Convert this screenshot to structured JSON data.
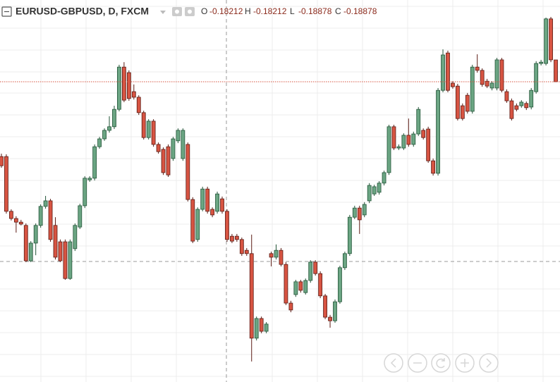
{
  "chart_data": {
    "type": "candlestick",
    "title": "EURUSD-GBPUSD, D, FXCM",
    "ohlc_labels": [
      "O",
      "H",
      "L",
      "C"
    ],
    "up_color": "#6ba583",
    "up_border": "#225437",
    "down_color": "#d75442",
    "down_border": "#5b1a13",
    "ylim": [
      -0.28037,
      -0.16384
    ],
    "ohlc": [
      [
        -0.2116,
        -0.2107,
        -0.215,
        -0.2144
      ],
      [
        -0.2116,
        -0.2109,
        -0.229,
        -0.2283
      ],
      [
        -0.2283,
        -0.2277,
        -0.2311,
        -0.2305
      ],
      [
        -0.2305,
        -0.2298,
        -0.2348,
        -0.2316
      ],
      [
        -0.2316,
        -0.2309,
        -0.2326,
        -0.2322
      ],
      [
        -0.2326,
        -0.232,
        -0.2438,
        -0.2434
      ],
      [
        -0.2434,
        -0.2374,
        -0.2438,
        -0.238
      ],
      [
        -0.238,
        -0.232,
        -0.2417,
        -0.2326
      ],
      [
        -0.2326,
        -0.2262,
        -0.2333,
        -0.2268
      ],
      [
        -0.2268,
        -0.2236,
        -0.2275,
        -0.2251
      ],
      [
        -0.2251,
        -0.2245,
        -0.2376,
        -0.2369
      ],
      [
        -0.2326,
        -0.2301,
        -0.243,
        -0.2423
      ],
      [
        -0.2376,
        -0.2369,
        -0.2438,
        -0.2434
      ],
      [
        -0.2376,
        -0.2369,
        -0.2492,
        -0.2488
      ],
      [
        -0.2488,
        -0.2369,
        -0.2492,
        -0.2376
      ],
      [
        -0.2397,
        -0.232,
        -0.2404,
        -0.2326
      ],
      [
        -0.2331,
        -0.226,
        -0.2337,
        -0.2266
      ],
      [
        -0.2266,
        -0.2176,
        -0.2273,
        -0.2182
      ],
      [
        -0.2187,
        -0.2176,
        -0.2193,
        -0.2182
      ],
      [
        -0.2182,
        -0.2079,
        -0.2189,
        -0.2086
      ],
      [
        -0.2086,
        -0.2056,
        -0.2092,
        -0.2062
      ],
      [
        -0.2062,
        -0.203,
        -0.2068,
        -0.2036
      ],
      [
        -0.2036,
        -0.1993,
        -0.2043,
        -0.2025
      ],
      [
        -0.2025,
        -0.1961,
        -0.2032,
        -0.1972
      ],
      [
        -0.1972,
        -0.1836,
        -0.1978,
        -0.1843
      ],
      [
        -0.1843,
        -0.1828,
        -0.195,
        -0.1944
      ],
      [
        -0.186,
        -0.1853,
        -0.1946,
        -0.1939
      ],
      [
        -0.1918,
        -0.1896,
        -0.1942,
        -0.1935
      ],
      [
        -0.1935,
        -0.1929,
        -0.1989,
        -0.1982
      ],
      [
        -0.1982,
        -0.1976,
        -0.2064,
        -0.2058
      ],
      [
        -0.2058,
        -0.2002,
        -0.2064,
        -0.2008
      ],
      [
        -0.2008,
        -0.2002,
        -0.2086,
        -0.2079
      ],
      [
        -0.2079,
        -0.2073,
        -0.2107,
        -0.2101
      ],
      [
        -0.2094,
        -0.2088,
        -0.2172,
        -0.2165
      ],
      [
        -0.2086,
        -0.2079,
        -0.2178,
        -0.2172
      ],
      [
        -0.2122,
        -0.2056,
        -0.2129,
        -0.2062
      ],
      [
        -0.2068,
        -0.203,
        -0.2075,
        -0.2036
      ],
      [
        -0.2122,
        -0.203,
        -0.2129,
        -0.2036
      ],
      [
        -0.2079,
        -0.2073,
        -0.2253,
        -0.2247
      ],
      [
        -0.2247,
        -0.224,
        -0.238,
        -0.2374
      ],
      [
        -0.2369,
        -0.2271,
        -0.2376,
        -0.2277
      ],
      [
        -0.2277,
        -0.2208,
        -0.2283,
        -0.2215
      ],
      [
        -0.2215,
        -0.2208,
        -0.229,
        -0.2283
      ],
      [
        -0.2277,
        -0.2271,
        -0.2301,
        -0.2294
      ],
      [
        -0.2283,
        -0.2223,
        -0.229,
        -0.223
      ],
      [
        -0.2245,
        -0.2238,
        -0.229,
        -0.2283
      ],
      [
        -0.2283,
        -0.2277,
        -0.2376,
        -0.2369
      ],
      [
        -0.2359,
        -0.2352,
        -0.238,
        -0.2374
      ],
      [
        -0.2359,
        -0.2352,
        -0.2376,
        -0.2369
      ],
      [
        -0.2369,
        -0.2363,
        -0.2419,
        -0.2412
      ],
      [
        -0.2402,
        -0.2395,
        -0.2419,
        -0.2412
      ],
      [
        -0.2412,
        -0.2354,
        -0.2741,
        -0.267
      ],
      [
        -0.267,
        -0.2604,
        -0.2677,
        -0.261
      ],
      [
        -0.261,
        -0.2604,
        -0.2655,
        -0.2649
      ],
      [
        -0.2649,
        -0.2621,
        -0.2655,
        -0.2627
      ],
      [
        -0.2412,
        -0.2406,
        -0.2451,
        -0.2423
      ],
      [
        -0.2423,
        -0.2384,
        -0.243,
        -0.2402
      ],
      [
        -0.2402,
        -0.2395,
        -0.2451,
        -0.2445
      ],
      [
        -0.2445,
        -0.2438,
        -0.2569,
        -0.2563
      ],
      [
        -0.2563,
        -0.2556,
        -0.2591,
        -0.2584
      ],
      [
        -0.2537,
        -0.2492,
        -0.2544,
        -0.2498
      ],
      [
        -0.2498,
        -0.2492,
        -0.2531,
        -0.2524
      ],
      [
        -0.2531,
        -0.2488,
        -0.2537,
        -0.2494
      ],
      [
        -0.2494,
        -0.2432,
        -0.2501,
        -0.2438
      ],
      [
        -0.2438,
        -0.2432,
        -0.2479,
        -0.2473
      ],
      [
        -0.2473,
        -0.2466,
        -0.2548,
        -0.2541
      ],
      [
        -0.2541,
        -0.2535,
        -0.2612,
        -0.2606
      ],
      [
        -0.2606,
        -0.2599,
        -0.2638,
        -0.2617
      ],
      [
        -0.2617,
        -0.2552,
        -0.2623,
        -0.2559
      ],
      [
        -0.2559,
        -0.2449,
        -0.2565,
        -0.2455
      ],
      [
        -0.2455,
        -0.2406,
        -0.2462,
        -0.2412
      ],
      [
        -0.2412,
        -0.2294,
        -0.2419,
        -0.2301
      ],
      [
        -0.2301,
        -0.2266,
        -0.2307,
        -0.2273
      ],
      [
        -0.2273,
        -0.2266,
        -0.2352,
        -0.2309
      ],
      [
        -0.2294,
        -0.2255,
        -0.2301,
        -0.2262
      ],
      [
        -0.2251,
        -0.2197,
        -0.2258,
        -0.2204
      ],
      [
        -0.223,
        -0.2202,
        -0.2236,
        -0.2208
      ],
      [
        -0.2225,
        -0.2191,
        -0.2232,
        -0.2197
      ],
      [
        -0.2197,
        -0.2159,
        -0.2204,
        -0.2165
      ],
      [
        -0.2165,
        -0.2019,
        -0.2172,
        -0.2025
      ],
      [
        -0.2025,
        -0.2019,
        -0.2096,
        -0.209
      ],
      [
        -0.209,
        -0.2079,
        -0.2096,
        -0.2086
      ],
      [
        -0.209,
        -0.2045,
        -0.2096,
        -0.2051
      ],
      [
        -0.2051,
        -0.2,
        -0.2086,
        -0.2079
      ],
      [
        -0.2079,
        -0.204,
        -0.2086,
        -0.2047
      ],
      [
        -0.2047,
        -0.1965,
        -0.2053,
        -0.1972
      ],
      [
        -0.2036,
        -0.203,
        -0.2064,
        -0.2058
      ],
      [
        -0.2032,
        -0.2025,
        -0.2135,
        -0.2129
      ],
      [
        -0.2129,
        -0.2122,
        -0.2174,
        -0.2167
      ],
      [
        -0.2167,
        -0.1907,
        -0.2174,
        -0.1914
      ],
      [
        -0.1914,
        -0.1789,
        -0.192,
        -0.1806
      ],
      [
        -0.18,
        -0.1793,
        -0.192,
        -0.1914
      ],
      [
        -0.1892,
        -0.1886,
        -0.1909,
        -0.1903
      ],
      [
        -0.1901,
        -0.1894,
        -0.2006,
        -0.2
      ],
      [
        -0.1961,
        -0.1954,
        -0.2006,
        -0.2
      ],
      [
        -0.1929,
        -0.1922,
        -0.1985,
        -0.1978
      ],
      [
        -0.1978,
        -0.1836,
        -0.1985,
        -0.1843
      ],
      [
        -0.1843,
        -0.1804,
        -0.186,
        -0.1853
      ],
      [
        -0.1853,
        -0.1847,
        -0.1903,
        -0.1896
      ],
      [
        -0.1886,
        -0.1879,
        -0.1907,
        -0.1901
      ],
      [
        -0.1907,
        -0.1886,
        -0.1914,
        -0.1892
      ],
      [
        -0.1907,
        -0.1815,
        -0.1914,
        -0.1821
      ],
      [
        -0.1821,
        -0.1815,
        -0.192,
        -0.1914
      ],
      [
        -0.1918,
        -0.1911,
        -0.1952,
        -0.1946
      ],
      [
        -0.1946,
        -0.1939,
        -0.2006,
        -0.2
      ],
      [
        -0.1961,
        -0.1954,
        -0.1978,
        -0.1972
      ],
      [
        -0.1961,
        -0.1944,
        -0.1967,
        -0.195
      ],
      [
        -0.1954,
        -0.1948,
        -0.1974,
        -0.1967
      ],
      [
        -0.1965,
        -0.1907,
        -0.1972,
        -0.1914
      ],
      [
        -0.1918,
        -0.1825,
        -0.1924,
        -0.1832
      ],
      [
        -0.1832,
        -0.1821,
        -0.1838,
        -0.1828
      ],
      [
        -0.1832,
        -0.1692,
        -0.1838,
        -0.1696
      ],
      [
        -0.1696,
        -0.169,
        -0.1828,
        -0.1821
      ],
      [
        -0.18212,
        -0.18212,
        -0.18878,
        -0.18878
      ]
    ]
  }
}
